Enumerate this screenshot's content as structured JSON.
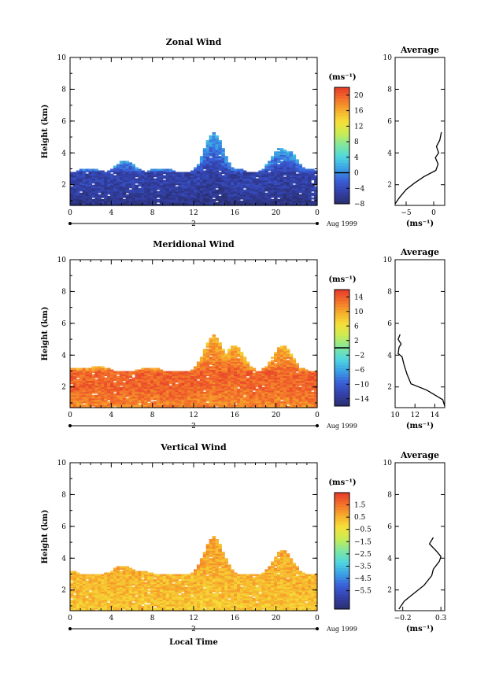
{
  "chart_data": [
    {
      "type": "heatmap",
      "title": "Zonal Wind",
      "ylabel": "Height (km)",
      "xlim": [
        0,
        24
      ],
      "ylim": [
        0.7,
        10
      ],
      "x_ticks": [
        "0",
        "4",
        "8",
        "12",
        "16",
        "20",
        "0"
      ],
      "y_ticks": [
        "2",
        "4",
        "6",
        "8",
        "10"
      ],
      "day_label": "2",
      "date_label": "Aug 1999",
      "colorbar": {
        "unit": "(ms⁻¹)",
        "min": -8,
        "max": 22,
        "tick_values": [
          20,
          16,
          12,
          8,
          4,
          0,
          -4,
          -8
        ],
        "tick_labels": [
          "20",
          "16",
          "12",
          "8",
          "4",
          "0",
          "−4",
          "−8"
        ],
        "contour_value": 0
      },
      "field": {
        "base_km": 2.7,
        "base_value": -5,
        "surface_value": -7,
        "top_value": 1.5,
        "peaks": [
          [
            5.2,
            3.5
          ],
          [
            13.8,
            5.2
          ],
          [
            20.3,
            4.3
          ],
          [
            21.0,
            4.1
          ]
        ]
      },
      "average": {
        "title": "Average",
        "xlabel": "(ms⁻¹)",
        "x_ticks": [
          "−5",
          "0"
        ],
        "xlim": [
          -7,
          2
        ],
        "points": [
          [
            -7.0,
            0.8
          ],
          [
            -6.2,
            1.2
          ],
          [
            -5.0,
            1.7
          ],
          [
            -3.5,
            2.1
          ],
          [
            -1.8,
            2.5
          ],
          [
            0.4,
            2.9
          ],
          [
            0.8,
            3.3
          ],
          [
            0.3,
            3.7
          ],
          [
            0.9,
            4.0
          ],
          [
            0.5,
            4.4
          ],
          [
            1.1,
            4.8
          ],
          [
            1.4,
            5.3
          ]
        ]
      }
    },
    {
      "type": "heatmap",
      "title": "Meridional Wind",
      "ylabel": "Height (km)",
      "xlim": [
        0,
        24
      ],
      "ylim": [
        0.7,
        10
      ],
      "x_ticks": [
        "0",
        "4",
        "8",
        "12",
        "16",
        "20",
        "0"
      ],
      "y_ticks": [
        "2",
        "4",
        "6",
        "8",
        "10"
      ],
      "day_label": "2",
      "date_label": "Aug 1999",
      "colorbar": {
        "unit": "(ms⁻¹)",
        "min": -16,
        "max": 16,
        "tick_values": [
          14,
          10,
          6,
          2,
          -2,
          -6,
          -10,
          -14
        ],
        "tick_labels": [
          "14",
          "10",
          "6",
          "2",
          "−2",
          "−6",
          "−10",
          "−14"
        ],
        "contour_value": 0
      },
      "field": {
        "base_km": 2.9,
        "base_value": 13.5,
        "surface_value": 11.5,
        "top_value": 9,
        "peaks": [
          [
            2.6,
            3.3
          ],
          [
            13.8,
            5.2
          ],
          [
            15.8,
            4.6
          ],
          [
            20.5,
            4.6
          ]
        ]
      },
      "average": {
        "title": "Average",
        "xlabel": "(ms⁻¹)",
        "x_ticks": [
          "10",
          "12",
          "14"
        ],
        "xlim": [
          10,
          15
        ],
        "points": [
          [
            15.0,
            0.8
          ],
          [
            14.8,
            1.2
          ],
          [
            13.2,
            1.8
          ],
          [
            11.6,
            2.2
          ],
          [
            11.2,
            2.8
          ],
          [
            10.9,
            3.4
          ],
          [
            10.7,
            3.9
          ],
          [
            10.3,
            4.1
          ],
          [
            10.4,
            4.5
          ],
          [
            10.6,
            4.7
          ],
          [
            10.3,
            5.0
          ],
          [
            10.5,
            5.3
          ]
        ]
      }
    },
    {
      "type": "heatmap",
      "title": "Vertical Wind",
      "ylabel": "Height (km)",
      "xlabel": "Local Time",
      "xlim": [
        0,
        24
      ],
      "ylim": [
        0.7,
        10
      ],
      "x_ticks": [
        "0",
        "4",
        "8",
        "12",
        "16",
        "20",
        "0"
      ],
      "y_ticks": [
        "2",
        "4",
        "6",
        "8",
        "10"
      ],
      "day_label": "2",
      "date_label": "Aug 1999",
      "colorbar": {
        "unit": "(ms⁻¹)",
        "min": -7,
        "max": 2.5,
        "tick_values": [
          1.5,
          0.5,
          -0.5,
          -1.5,
          -2.5,
          -3.5,
          -4.5,
          -5.5
        ],
        "tick_labels": [
          "1.5",
          "0.5",
          "−0.5",
          "−1.5",
          "−2.5",
          "−3.5",
          "−4.5",
          "−5.5"
        ]
      },
      "field": {
        "base_km": 2.9,
        "base_value": 0.4,
        "surface_value": 0.1,
        "top_value": 0.8,
        "peaks": [
          [
            5.0,
            3.5
          ],
          [
            13.8,
            5.3
          ],
          [
            20.5,
            4.5
          ]
        ]
      },
      "average": {
        "title": "Average",
        "xlabel": "(ms⁻¹)",
        "x_ticks": [
          "−0.2",
          "0.3"
        ],
        "xlim": [
          -0.3,
          0.35
        ],
        "points": [
          [
            -0.25,
            0.8
          ],
          [
            -0.18,
            1.3
          ],
          [
            -0.05,
            1.8
          ],
          [
            0.08,
            2.3
          ],
          [
            0.18,
            2.9
          ],
          [
            0.2,
            3.3
          ],
          [
            0.28,
            3.8
          ],
          [
            0.3,
            4.1
          ],
          [
            0.25,
            4.4
          ],
          [
            0.15,
            4.9
          ],
          [
            0.2,
            5.3
          ]
        ]
      }
    }
  ]
}
